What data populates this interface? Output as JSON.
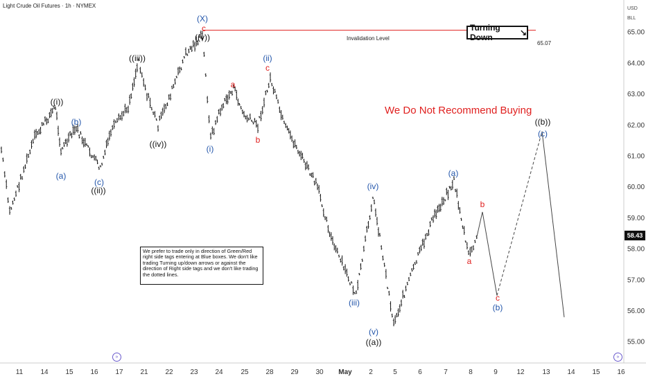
{
  "header": {
    "title": "Light Crude Oil Futures · 1h · NYMEX"
  },
  "currency": {
    "line1": "USD",
    "line2": "BLL"
  },
  "current_price": "58.43",
  "invalidation": {
    "label": "Invalidation Level",
    "value": "65.07"
  },
  "warning_text": "We Do Not Recommend Buying",
  "turning": {
    "label": "Turning Down",
    "arrow": "↘"
  },
  "note_text": "We prefer to trade only in direction of Green/Red right side tags entering at Blue boxes. We don't like trading Turning up/down arrows or against the direction of Right side tags and we don't like trading the dotted lines.",
  "event_icon_symbol": "»",
  "colors": {
    "red": "#e0201f",
    "blue": "#2255aa",
    "black": "#111111",
    "bars": "#111111"
  },
  "chart_data": {
    "type": "line",
    "title": "",
    "x_ticks": [
      "11",
      "14",
      "15",
      "16",
      "17",
      "21",
      "22",
      "23",
      "24",
      "25",
      "28",
      "29",
      "30",
      "May",
      "2",
      "5",
      "6",
      "7",
      "8",
      "9",
      "12",
      "13",
      "14",
      "15",
      "16"
    ],
    "y_ticks": [
      "65.00",
      "64.00",
      "63.00",
      "62.00",
      "61.00",
      "60.00",
      "59.00",
      "58.00",
      "57.00",
      "56.00",
      "55.00"
    ],
    "ylim": [
      54.5,
      66.0
    ],
    "price_path": [
      {
        "x": "11",
        "y": 61.2
      },
      {
        "x": "11",
        "y": 59.2
      },
      {
        "x": "14",
        "y": 61.6
      },
      {
        "x": "14",
        "y": 62.6
      },
      {
        "x": "14",
        "y": 61.2
      },
      {
        "x": "15",
        "y": 61.9
      },
      {
        "x": "16",
        "y": 61.3
      },
      {
        "x": "16",
        "y": 60.6
      },
      {
        "x": "17",
        "y": 61.8
      },
      {
        "x": "17",
        "y": 62.6
      },
      {
        "x": "21",
        "y": 64.1
      },
      {
        "x": "21",
        "y": 63.0
      },
      {
        "x": "22",
        "y": 62.0
      },
      {
        "x": "22",
        "y": 63.0
      },
      {
        "x": "23",
        "y": 64.3
      },
      {
        "x": "23",
        "y": 64.9
      },
      {
        "x": "24",
        "y": 61.6
      },
      {
        "x": "24",
        "y": 62.5
      },
      {
        "x": "25",
        "y": 63.2
      },
      {
        "x": "25",
        "y": 62.3
      },
      {
        "x": "28",
        "y": 62.0
      },
      {
        "x": "28",
        "y": 63.5
      },
      {
        "x": "29",
        "y": 62.0
      },
      {
        "x": "29",
        "y": 61.2
      },
      {
        "x": "30",
        "y": 60.0
      },
      {
        "x": "30",
        "y": 58.2
      },
      {
        "x": "May",
        "y": 56.5
      },
      {
        "x": "2",
        "y": 59.7
      },
      {
        "x": "2",
        "y": 58.4
      },
      {
        "x": "5",
        "y": 55.6
      },
      {
        "x": "6",
        "y": 57.0
      },
      {
        "x": "7",
        "y": 59.0
      },
      {
        "x": "7",
        "y": 60.2
      },
      {
        "x": "8",
        "y": 57.8
      },
      {
        "x": "8",
        "y": 58.4
      }
    ],
    "wave_labels": [
      {
        "text": "((i))",
        "color": "black"
      },
      {
        "text": "(a)",
        "color": "blue"
      },
      {
        "text": "(b)",
        "color": "blue"
      },
      {
        "text": "(c)",
        "color": "blue"
      },
      {
        "text": "((ii))",
        "color": "black"
      },
      {
        "text": "((iii))",
        "color": "black"
      },
      {
        "text": "((iv))",
        "color": "black"
      },
      {
        "text": "(X)",
        "color": "blue"
      },
      {
        "text": "c",
        "color": "red"
      },
      {
        "text": "((v))",
        "color": "black"
      },
      {
        "text": "(i)",
        "color": "blue"
      },
      {
        "text": "a",
        "color": "red"
      },
      {
        "text": "b",
        "color": "red"
      },
      {
        "text": "(ii)",
        "color": "blue"
      },
      {
        "text": "c",
        "color": "red"
      },
      {
        "text": "(iii)",
        "color": "blue"
      },
      {
        "text": "(iv)",
        "color": "blue"
      },
      {
        "text": "(v)",
        "color": "blue"
      },
      {
        "text": "((a))",
        "color": "black"
      },
      {
        "text": "(a)",
        "color": "blue"
      },
      {
        "text": "a",
        "color": "red"
      },
      {
        "text": "b",
        "color": "red"
      },
      {
        "text": "c",
        "color": "red"
      },
      {
        "text": "(b)",
        "color": "blue"
      },
      {
        "text": "((b))",
        "color": "black"
      },
      {
        "text": "(c)",
        "color": "blue"
      }
    ],
    "projection": {
      "solid_1": [
        {
          "x": "8",
          "y": 58.4
        },
        {
          "x": "8",
          "y": 59.2
        }
      ],
      "solid_2": [
        {
          "x": "8",
          "y": 59.2
        },
        {
          "x": "9",
          "y": 56.5
        }
      ],
      "dashed": [
        {
          "x": "9",
          "y": 56.5
        },
        {
          "x": "13",
          "y": 61.8
        }
      ],
      "solid_3": [
        {
          "x": "13",
          "y": 61.8
        },
        {
          "x": "14",
          "y": 55.8
        }
      ]
    },
    "grid": false,
    "legend": "none"
  }
}
